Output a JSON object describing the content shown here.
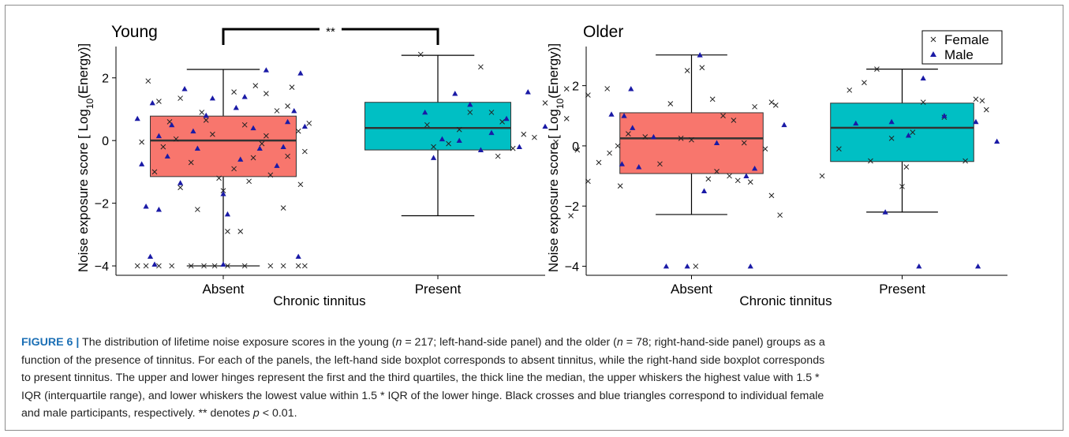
{
  "chart_data": [
    {
      "type": "box",
      "title": "Young",
      "xlabel": "Chronic tinnitus",
      "ylabel_parts": [
        "Noise exposure score [ Log",
        "10",
        "(Energy)]"
      ],
      "categories": [
        "Absent",
        "Present"
      ],
      "ylim": [
        -4.3,
        3.0
      ],
      "yticks": [
        -4,
        -2,
        0,
        2
      ],
      "ytick_labels": [
        "−4",
        "−2",
        "0",
        "2"
      ],
      "significance": "**",
      "boxes": [
        {
          "category": "Absent",
          "q1": -1.15,
          "median": 0.0,
          "q3": 0.78,
          "whisker_low": -4.0,
          "whisker_high": 2.27,
          "color": "#f8766d"
        },
        {
          "category": "Present",
          "q1": -0.3,
          "median": 0.4,
          "q3": 1.22,
          "whisker_low": -2.4,
          "whisker_high": 2.72,
          "color": "#00bfc4"
        }
      ],
      "points": {
        "female": [
          [
            -0.35,
            1.9
          ],
          [
            0.2,
            1.5
          ],
          [
            -0.2,
            1.35
          ],
          [
            0.05,
            1.55
          ],
          [
            0.15,
            1.75
          ],
          [
            -0.3,
            1.25
          ],
          [
            0.32,
            1.7
          ],
          [
            -0.1,
            0.9
          ],
          [
            0.25,
            0.95
          ],
          [
            0.1,
            0.5
          ],
          [
            -0.25,
            0.6
          ],
          [
            0.35,
            0.3
          ],
          [
            -0.05,
            0.2
          ],
          [
            0.18,
            -0.1
          ],
          [
            -0.28,
            -0.2
          ],
          [
            0.3,
            -0.5
          ],
          [
            -0.15,
            -0.7
          ],
          [
            0.05,
            -0.9
          ],
          [
            0.22,
            -1.1
          ],
          [
            -0.32,
            -1.0
          ],
          [
            0.12,
            -1.3
          ],
          [
            -0.2,
            -1.5
          ],
          [
            0.36,
            -1.4
          ],
          [
            0.0,
            -1.6
          ],
          [
            -0.12,
            -2.2
          ],
          [
            0.28,
            -2.15
          ],
          [
            0.02,
            -2.9
          ],
          [
            0.08,
            -2.9
          ],
          [
            -0.38,
            -0.05
          ],
          [
            0.4,
            0.55
          ],
          [
            0.38,
            -0.35
          ],
          [
            -0.08,
            0.65
          ],
          [
            0.2,
            0.15
          ],
          [
            -0.22,
            0.05
          ],
          [
            0.3,
            1.1
          ],
          [
            0.14,
            -0.55
          ],
          [
            -0.02,
            -1.2
          ],
          [
            -0.4,
            -4.0
          ],
          [
            -0.36,
            -4.0
          ],
          [
            -0.3,
            -4.0
          ],
          [
            -0.24,
            -4.0
          ],
          [
            -0.15,
            -4.0
          ],
          [
            -0.09,
            -4.0
          ],
          [
            -0.04,
            -4.0
          ],
          [
            0.02,
            -4.0
          ],
          [
            0.1,
            -4.0
          ],
          [
            0.22,
            -4.0
          ],
          [
            0.28,
            -4.0
          ],
          [
            0.35,
            -4.0
          ],
          [
            0.38,
            -4.0
          ],
          [
            0.92,
            2.75
          ],
          [
            1.2,
            2.35
          ],
          [
            1.6,
            1.65
          ],
          [
            1.7,
            1.45
          ],
          [
            0.95,
            0.5
          ],
          [
            1.1,
            0.35
          ],
          [
            1.3,
            0.6
          ],
          [
            1.45,
            0.1
          ],
          [
            1.55,
            -0.05
          ],
          [
            1.65,
            -0.3
          ],
          [
            1.75,
            -0.7
          ],
          [
            1.35,
            -0.25
          ],
          [
            1.05,
            -0.1
          ],
          [
            1.25,
            0.9
          ],
          [
            1.5,
            1.2
          ],
          [
            1.6,
            0.7
          ],
          [
            1.85,
            -1.45
          ],
          [
            1.7,
            -1.3
          ],
          [
            1.62,
            -2.4
          ],
          [
            1.15,
            0.9
          ],
          [
            1.4,
            0.2
          ],
          [
            1.8,
            -0.4
          ],
          [
            0.98,
            -0.2
          ],
          [
            1.28,
            -0.5
          ]
        ],
        "male": [
          [
            -0.4,
            0.7
          ],
          [
            -0.33,
            1.2
          ],
          [
            -0.18,
            1.65
          ],
          [
            -0.05,
            1.35
          ],
          [
            0.06,
            1.05
          ],
          [
            0.2,
            2.25
          ],
          [
            0.33,
            0.95
          ],
          [
            0.38,
            0.45
          ],
          [
            -0.3,
            0.15
          ],
          [
            -0.12,
            -0.25
          ],
          [
            0.08,
            -0.6
          ],
          [
            0.25,
            -0.8
          ],
          [
            -0.38,
            -0.75
          ],
          [
            -0.2,
            -1.35
          ],
          [
            0.0,
            -1.7
          ],
          [
            0.14,
            0.4
          ],
          [
            -0.08,
            0.8
          ],
          [
            0.3,
            0.6
          ],
          [
            -0.24,
            0.5
          ],
          [
            0.17,
            -0.25
          ],
          [
            -0.36,
            -2.1
          ],
          [
            -0.3,
            -2.2
          ],
          [
            0.02,
            -2.35
          ],
          [
            -0.34,
            -3.7
          ],
          [
            0.35,
            -3.7
          ],
          [
            -0.32,
            -3.95
          ],
          [
            0.0,
            -3.95
          ],
          [
            0.36,
            2.15
          ],
          [
            -0.14,
            0.3
          ],
          [
            0.1,
            1.4
          ],
          [
            -0.26,
            -0.5
          ],
          [
            0.28,
            -0.2
          ],
          [
            0.94,
            0.9
          ],
          [
            1.08,
            1.5
          ],
          [
            1.15,
            1.15
          ],
          [
            1.2,
            -0.3
          ],
          [
            1.25,
            0.25
          ],
          [
            1.32,
            0.7
          ],
          [
            1.42,
            1.55
          ],
          [
            1.5,
            0.45
          ],
          [
            1.02,
            0.05
          ],
          [
            0.98,
            -0.55
          ],
          [
            1.1,
            0.0
          ],
          [
            1.38,
            -0.2
          ],
          [
            1.9,
            1.65
          ]
        ]
      }
    },
    {
      "type": "box",
      "title": "Older",
      "xlabel": "Chronic tinnitus",
      "ylabel_parts": [
        "Noise exposure score [ Log",
        "10",
        "(Energy)]"
      ],
      "categories": [
        "Absent",
        "Present"
      ],
      "ylim": [
        -4.3,
        3.3
      ],
      "yticks": [
        -4,
        -2,
        0,
        2
      ],
      "ytick_labels": [
        "−4",
        "−2",
        "0",
        "2"
      ],
      "legend": {
        "position": "top-right",
        "entries": [
          {
            "label": "Female",
            "marker": "cross"
          },
          {
            "label": "Male",
            "marker": "triangle"
          }
        ]
      },
      "boxes": [
        {
          "category": "Absent",
          "q1": -0.92,
          "median": 0.25,
          "q3": 1.1,
          "whisker_low": -2.28,
          "whisker_high": 3.02,
          "color": "#f8766d"
        },
        {
          "category": "Present",
          "q1": -0.52,
          "median": 0.6,
          "q3": 1.42,
          "whisker_low": -2.2,
          "whisker_high": 2.55,
          "color": "#00bfc4"
        }
      ],
      "points": {
        "female": [
          [
            -0.4,
            1.9
          ],
          [
            -0.3,
            0.4
          ],
          [
            -0.22,
            0.3
          ],
          [
            -0.1,
            1.4
          ],
          [
            -0.02,
            2.5
          ],
          [
            0.05,
            2.6
          ],
          [
            0.1,
            1.55
          ],
          [
            0.15,
            1.0
          ],
          [
            0.2,
            0.85
          ],
          [
            0.25,
            0.1
          ],
          [
            0.3,
            1.3
          ],
          [
            0.38,
            1.45
          ],
          [
            0.4,
            1.35
          ],
          [
            0.0,
            0.2
          ],
          [
            -0.05,
            0.25
          ],
          [
            0.08,
            -1.1
          ],
          [
            0.18,
            -1.0
          ],
          [
            0.28,
            -1.2
          ],
          [
            0.35,
            -0.1
          ],
          [
            0.38,
            -1.65
          ],
          [
            0.42,
            -2.3
          ],
          [
            -0.15,
            -0.6
          ],
          [
            0.12,
            -0.85
          ],
          [
            -0.35,
            0.0
          ],
          [
            0.22,
            -1.15
          ],
          [
            0.02,
            -4.0
          ],
          [
            0.62,
            -1.0
          ],
          [
            0.7,
            -0.1
          ],
          [
            0.75,
            1.85
          ],
          [
            0.82,
            2.1
          ],
          [
            0.88,
            2.55
          ],
          [
            0.95,
            0.25
          ],
          [
            1.0,
            -1.35
          ],
          [
            1.02,
            -0.7
          ],
          [
            1.1,
            1.45
          ],
          [
            1.2,
            0.95
          ],
          [
            1.3,
            -0.5
          ],
          [
            1.35,
            1.55
          ],
          [
            1.38,
            1.5
          ],
          [
            1.4,
            1.2
          ],
          [
            0.85,
            -0.5
          ],
          [
            1.05,
            0.45
          ]
        ],
        "male": [
          [
            -0.38,
            1.05
          ],
          [
            -0.33,
            -0.6
          ],
          [
            -0.28,
            0.6
          ],
          [
            -0.25,
            -0.7
          ],
          [
            -0.18,
            0.3
          ],
          [
            0.04,
            3.02
          ],
          [
            0.06,
            -1.5
          ],
          [
            0.12,
            0.1
          ],
          [
            0.26,
            -1.0
          ],
          [
            0.3,
            -0.75
          ],
          [
            0.44,
            0.7
          ],
          [
            -0.12,
            -4.0
          ],
          [
            -0.02,
            -4.0
          ],
          [
            0.28,
            -4.0
          ],
          [
            -0.32,
            1.0
          ],
          [
            0.78,
            0.75
          ],
          [
            0.95,
            0.8
          ],
          [
            1.1,
            2.25
          ],
          [
            1.2,
            1.0
          ],
          [
            1.45,
            0.15
          ],
          [
            0.92,
            -2.2
          ],
          [
            1.03,
            0.35
          ],
          [
            1.35,
            0.8
          ],
          [
            1.08,
            -4.0
          ],
          [
            1.36,
            -4.0
          ]
        ]
      }
    }
  ],
  "caption": {
    "label": "FIGURE 6 |",
    "lines": [
      [
        "The distribution of lifetime noise exposure scores in the young (",
        "n",
        " = 217; left-hand-side panel) and the older (",
        "n",
        " = 78; right-hand-side panel) groups as a"
      ],
      [
        "function of the presence of tinnitus. For each of the panels, the left-hand side boxplot corresponds to absent tinnitus, while the right-hand side boxplot corresponds"
      ],
      [
        "to present tinnitus. The upper and lower hinges represent the first and the third quartiles, the thick line the median, the upper whiskers the highest value with 1.5 *"
      ],
      [
        "IQR (interquartile range), and lower whiskers the lowest value within 1.5 * IQR of the lower hinge. Black crosses and blue triangles correspond to individual female"
      ],
      [
        "and male participants, respectively. ** denotes ",
        "p",
        " < 0.01."
      ]
    ]
  },
  "colors": {
    "absent": "#f8766d",
    "present": "#00bfc4",
    "male": "#1a1aa6",
    "female": "#222222",
    "caption_label": "#1b6fb5"
  }
}
